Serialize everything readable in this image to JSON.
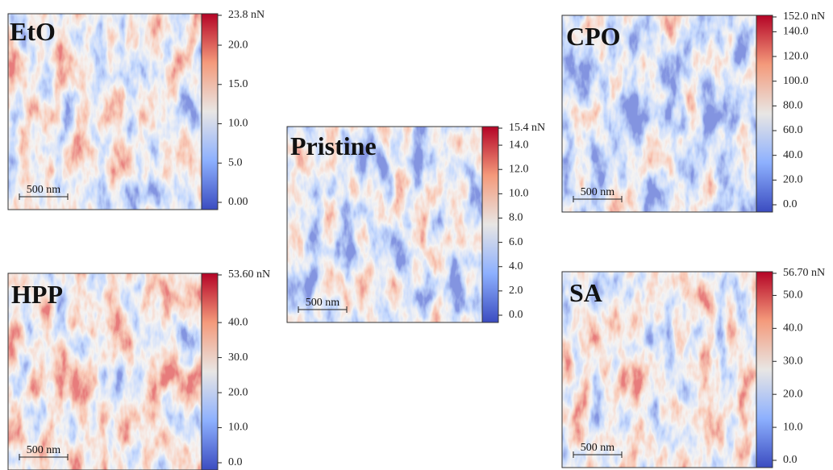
{
  "panels": [
    {
      "label": "EtO",
      "scale_bar": "500 nm",
      "colorbar": {
        "ticks": [
          {
            "value": 23.8,
            "label": "23.8 nN"
          },
          {
            "value": 20,
            "label": "20.0"
          },
          {
            "value": 15,
            "label": "15.0"
          },
          {
            "value": 10,
            "label": "10.0"
          },
          {
            "value": 5,
            "label": "5.0"
          },
          {
            "value": 0,
            "label": "0.00"
          }
        ]
      }
    },
    {
      "label": "Pristine",
      "scale_bar": "500 nm",
      "colorbar": {
        "ticks": [
          {
            "value": 15.4,
            "label": "15.4 nN"
          },
          {
            "value": 14,
            "label": "14.0"
          },
          {
            "value": 12,
            "label": "12.0"
          },
          {
            "value": 10,
            "label": "10.0"
          },
          {
            "value": 8,
            "label": "8.0"
          },
          {
            "value": 6,
            "label": "6.0"
          },
          {
            "value": 4,
            "label": "4.0"
          },
          {
            "value": 2,
            "label": "2.0"
          },
          {
            "value": 0,
            "label": "0.0"
          }
        ]
      }
    },
    {
      "label": "CPO",
      "scale_bar": "500 nm",
      "colorbar": {
        "ticks": [
          {
            "value": 152,
            "label": "152.0 nN"
          },
          {
            "value": 140,
            "label": "140.0"
          },
          {
            "value": 120,
            "label": "120.0"
          },
          {
            "value": 100,
            "label": "100.0"
          },
          {
            "value": 80,
            "label": "80.0"
          },
          {
            "value": 60,
            "label": "60.0"
          },
          {
            "value": 40,
            "label": "40.0"
          },
          {
            "value": 20,
            "label": "20.0"
          },
          {
            "value": 0,
            "label": "0.0"
          }
        ]
      }
    },
    {
      "label": "HPP",
      "scale_bar": "500 nm",
      "colorbar": {
        "ticks": [
          {
            "value": 53.6,
            "label": "53.60 nN"
          },
          {
            "value": 40,
            "label": "40.0"
          },
          {
            "value": 30,
            "label": "30.0"
          },
          {
            "value": 20,
            "label": "20.0"
          },
          {
            "value": 10,
            "label": "10.0"
          },
          {
            "value": 0,
            "label": "0.0"
          }
        ]
      }
    },
    {
      "label": "SA",
      "scale_bar": "500 nm",
      "colorbar": {
        "ticks": [
          {
            "value": 56.7,
            "label": "56.70 nN"
          },
          {
            "value": 50,
            "label": "50.0"
          },
          {
            "value": 40,
            "label": "40.0"
          },
          {
            "value": 30,
            "label": "30.0"
          },
          {
            "value": 20,
            "label": "20.0"
          },
          {
            "value": 10,
            "label": "10.0"
          },
          {
            "value": 0,
            "label": "0.0"
          }
        ]
      }
    }
  ]
}
